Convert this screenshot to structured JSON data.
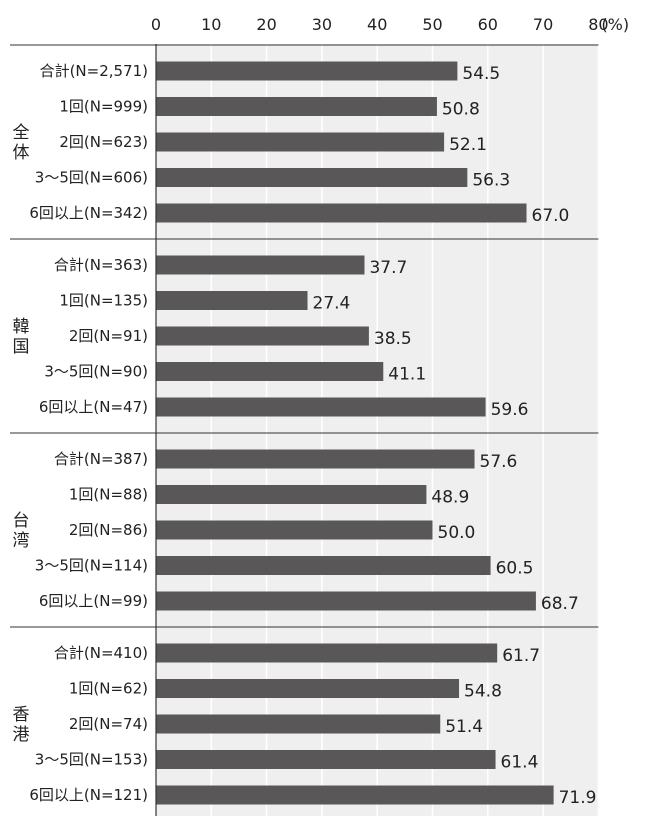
{
  "chart_data": {
    "type": "bar",
    "orientation": "horizontal",
    "x_unit": "(%)",
    "xlim": [
      0,
      80
    ],
    "x_ticks": [
      0,
      10,
      20,
      30,
      40,
      50,
      60,
      70,
      80
    ],
    "grid": true,
    "groups": [
      {
        "name": "全体",
        "categories": [
          "合計(N=2,571)",
          "1回(N=999)",
          "2回(N=623)",
          "3〜5回(N=606)",
          "6回以上(N=342)"
        ],
        "values": [
          54.5,
          50.8,
          52.1,
          56.3,
          67.0
        ],
        "labels": [
          "54.5",
          "50.8",
          "52.1",
          "56.3",
          "67.0"
        ]
      },
      {
        "name": "韓国",
        "categories": [
          "合計(N=363)",
          "1回(N=135)",
          "2回(N=91)",
          "3〜5回(N=90)",
          "6回以上(N=47)"
        ],
        "values": [
          37.7,
          27.4,
          38.5,
          41.1,
          59.6
        ],
        "labels": [
          "37.7",
          "27.4",
          "38.5",
          "41.1",
          "59.6"
        ]
      },
      {
        "name": "台湾",
        "categories": [
          "合計(N=387)",
          "1回(N=88)",
          "2回(N=86)",
          "3〜5回(N=114)",
          "6回以上(N=99)"
        ],
        "values": [
          57.6,
          48.9,
          50.0,
          60.5,
          68.7
        ],
        "labels": [
          "57.6",
          "48.9",
          "50.0",
          "60.5",
          "68.7"
        ]
      },
      {
        "name": "香港",
        "categories": [
          "合計(N=410)",
          "1回(N=62)",
          "2回(N=74)",
          "3〜5回(N=153)",
          "6回以上(N=121)"
        ],
        "values": [
          61.7,
          54.8,
          51.4,
          61.4,
          71.9
        ],
        "labels": [
          "61.7",
          "54.8",
          "51.4",
          "61.4",
          "71.9"
        ]
      }
    ]
  },
  "colors": {
    "bar": "#595757",
    "plot_background": "#efefef",
    "grid": "#ffffff",
    "axis": "#333333",
    "text": "#222222"
  }
}
